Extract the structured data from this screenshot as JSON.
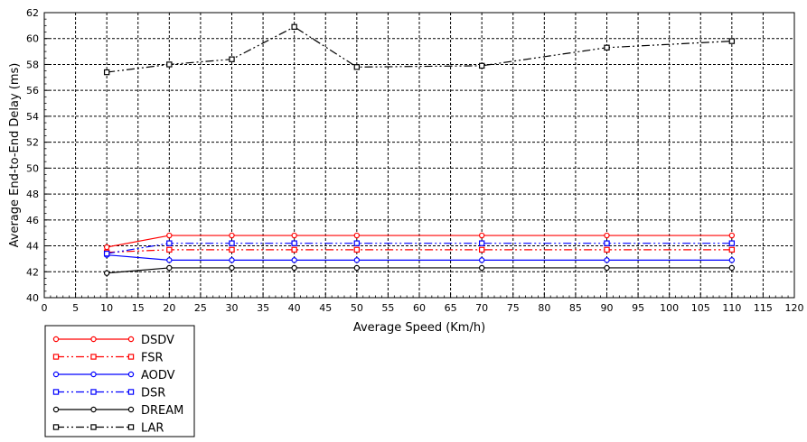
{
  "chart_data": {
    "type": "line",
    "title": "",
    "xlabel": "Average Speed (Km/h)",
    "ylabel": "Average End-to-End Delay (ms)",
    "xlim": [
      0,
      120
    ],
    "ylim": [
      40,
      62
    ],
    "x_ticks": [
      0,
      5,
      10,
      15,
      20,
      25,
      30,
      35,
      40,
      45,
      50,
      55,
      60,
      65,
      70,
      75,
      80,
      85,
      90,
      95,
      100,
      105,
      110,
      115,
      120
    ],
    "y_ticks": [
      40,
      42,
      44,
      46,
      48,
      50,
      52,
      54,
      56,
      58,
      60,
      62
    ],
    "grid": true,
    "legend_position": "bottom-left",
    "x": [
      10,
      20,
      30,
      40,
      50,
      70,
      90,
      110
    ],
    "series": [
      {
        "name": "DSDV",
        "values": [
          43.9,
          44.8,
          44.8,
          44.8,
          44.8,
          44.8,
          44.8,
          44.8
        ],
        "color": "#ff0000",
        "line_style": "solid",
        "marker": "circle"
      },
      {
        "name": "FSR",
        "values": [
          43.5,
          43.7,
          43.7,
          43.7,
          43.7,
          43.7,
          43.7,
          43.7
        ],
        "color": "#ff0000",
        "line_style": "dash-dot-dot",
        "marker": "square"
      },
      {
        "name": "AODV",
        "values": [
          43.3,
          42.9,
          42.9,
          42.9,
          42.9,
          42.9,
          42.9,
          42.9
        ],
        "color": "#0000ff",
        "line_style": "solid",
        "marker": "circle"
      },
      {
        "name": "DSR",
        "values": [
          43.4,
          44.2,
          44.2,
          44.2,
          44.2,
          44.2,
          44.2,
          44.2
        ],
        "color": "#0000ff",
        "line_style": "dash-dot-dot",
        "marker": "square"
      },
      {
        "name": "DREAM",
        "values": [
          41.9,
          42.3,
          42.3,
          42.3,
          42.3,
          42.3,
          42.3,
          42.3
        ],
        "color": "#000000",
        "line_style": "solid",
        "marker": "circle"
      },
      {
        "name": "LAR",
        "values": [
          57.4,
          58.0,
          58.4,
          60.9,
          57.8,
          57.9,
          59.3,
          59.8
        ],
        "color": "#000000",
        "line_style": "dash-dot-dot",
        "marker": "square"
      }
    ]
  }
}
